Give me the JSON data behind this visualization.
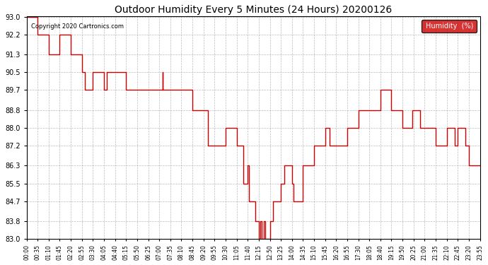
{
  "title": "Outdoor Humidity Every 5 Minutes (24 Hours) 20200126",
  "copyright": "Copyright 2020 Cartronics.com",
  "legend_label": "Humidity  (%)",
  "legend_bg": "#cc0000",
  "legend_text_color": "#ffffff",
  "line_color": "#cc0000",
  "bg_color": "#ffffff",
  "grid_color": "#aaaaaa",
  "ylim": [
    83.0,
    93.0
  ],
  "yticks": [
    83.0,
    83.8,
    84.7,
    85.5,
    86.3,
    87.2,
    88.0,
    88.8,
    89.7,
    90.5,
    91.3,
    92.2,
    93.0
  ],
  "time_series": [
    [
      "00:00",
      93.0
    ],
    [
      "00:35",
      93.0
    ],
    [
      "00:35",
      92.2
    ],
    [
      "01:10",
      92.2
    ],
    [
      "01:10",
      91.3
    ],
    [
      "01:45",
      91.3
    ],
    [
      "01:45",
      92.2
    ],
    [
      "02:20",
      92.2
    ],
    [
      "02:20",
      91.3
    ],
    [
      "02:55",
      91.3
    ],
    [
      "02:55",
      90.5
    ],
    [
      "03:05",
      90.5
    ],
    [
      "03:05",
      89.7
    ],
    [
      "03:30",
      89.7
    ],
    [
      "03:30",
      90.5
    ],
    [
      "04:05",
      90.5
    ],
    [
      "04:05",
      89.7
    ],
    [
      "04:15",
      89.7
    ],
    [
      "04:15",
      90.5
    ],
    [
      "05:15",
      90.5
    ],
    [
      "05:15",
      89.7
    ],
    [
      "07:10",
      89.7
    ],
    [
      "07:10",
      90.5
    ],
    [
      "07:10",
      90.5
    ],
    [
      "07:10",
      89.7
    ],
    [
      "08:45",
      89.7
    ],
    [
      "08:45",
      88.8
    ],
    [
      "09:35",
      88.8
    ],
    [
      "09:35",
      87.2
    ],
    [
      "10:30",
      87.2
    ],
    [
      "10:30",
      88.0
    ],
    [
      "11:05",
      88.0
    ],
    [
      "11:05",
      87.2
    ],
    [
      "11:25",
      87.2
    ],
    [
      "11:25",
      85.5
    ],
    [
      "11:40",
      85.5
    ],
    [
      "11:40",
      86.3
    ],
    [
      "11:45",
      86.3
    ],
    [
      "11:45",
      84.7
    ],
    [
      "12:05",
      84.7
    ],
    [
      "12:05",
      83.8
    ],
    [
      "12:15",
      83.8
    ],
    [
      "12:15",
      83.0
    ],
    [
      "12:20",
      83.0
    ],
    [
      "12:20",
      83.8
    ],
    [
      "12:25",
      83.8
    ],
    [
      "12:25",
      83.0
    ],
    [
      "12:30",
      83.0
    ],
    [
      "12:30",
      83.8
    ],
    [
      "12:35",
      83.8
    ],
    [
      "12:35",
      83.0
    ],
    [
      "12:50",
      83.0
    ],
    [
      "12:50",
      83.8
    ],
    [
      "13:00",
      83.8
    ],
    [
      "13:00",
      84.7
    ],
    [
      "13:25",
      84.7
    ],
    [
      "13:25",
      85.5
    ],
    [
      "13:35",
      85.5
    ],
    [
      "13:35",
      86.3
    ],
    [
      "14:00",
      86.3
    ],
    [
      "14:00",
      85.5
    ],
    [
      "14:05",
      85.5
    ],
    [
      "14:05",
      84.7
    ],
    [
      "14:35",
      84.7
    ],
    [
      "14:35",
      86.3
    ],
    [
      "15:10",
      86.3
    ],
    [
      "15:10",
      87.2
    ],
    [
      "15:45",
      87.2
    ],
    [
      "15:45",
      88.0
    ],
    [
      "16:00",
      88.0
    ],
    [
      "16:00",
      87.2
    ],
    [
      "16:55",
      87.2
    ],
    [
      "16:55",
      88.0
    ],
    [
      "17:30",
      88.0
    ],
    [
      "17:30",
      88.8
    ],
    [
      "18:40",
      88.8
    ],
    [
      "18:40",
      89.7
    ],
    [
      "19:15",
      89.7
    ],
    [
      "19:15",
      88.8
    ],
    [
      "19:50",
      88.8
    ],
    [
      "19:50",
      88.0
    ],
    [
      "20:20",
      88.0
    ],
    [
      "20:20",
      88.8
    ],
    [
      "20:45",
      88.8
    ],
    [
      "20:45",
      88.0
    ],
    [
      "21:35",
      88.0
    ],
    [
      "21:35",
      87.2
    ],
    [
      "22:10",
      87.2
    ],
    [
      "22:10",
      88.0
    ],
    [
      "22:35",
      88.0
    ],
    [
      "22:35",
      87.2
    ],
    [
      "22:45",
      87.2
    ],
    [
      "22:45",
      88.0
    ],
    [
      "23:10",
      88.0
    ],
    [
      "23:10",
      87.2
    ],
    [
      "23:20",
      87.2
    ],
    [
      "23:20",
      86.3
    ],
    [
      "23:55",
      86.3
    ]
  ],
  "xtick_labels": [
    "00:00",
    "00:35",
    "01:10",
    "01:45",
    "02:20",
    "02:55",
    "03:30",
    "04:05",
    "04:40",
    "05:15",
    "05:50",
    "06:25",
    "07:00",
    "07:35",
    "08:10",
    "08:45",
    "09:20",
    "09:55",
    "10:30",
    "11:05",
    "11:40",
    "12:15",
    "12:50",
    "13:25",
    "14:00",
    "14:35",
    "15:10",
    "15:45",
    "16:20",
    "16:55",
    "17:30",
    "18:05",
    "18:40",
    "19:15",
    "19:50",
    "20:25",
    "21:00",
    "21:35",
    "22:10",
    "22:45",
    "23:20",
    "23:55"
  ]
}
